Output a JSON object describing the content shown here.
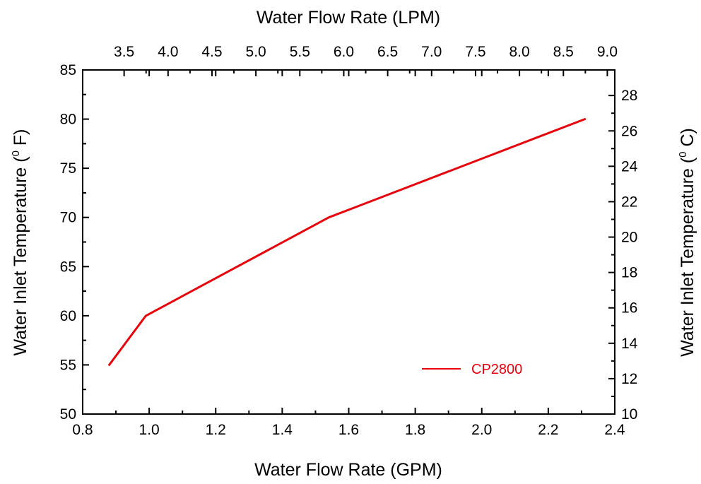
{
  "chart_data": {
    "type": "line",
    "title": "",
    "xlabel": "Water Flow Rate (GPM)",
    "ylabel_main": "Water Inlet Temperature (",
    "ylabel_sup": "0",
    "ylabel_unit": " F)",
    "x2label": "Water Flow Rate (LPM)",
    "y2label_main": "Water Inlet Temperature (",
    "y2label_sup": "0",
    "y2label_unit": " C)",
    "xlim": [
      0.8,
      2.4
    ],
    "ylim": [
      50,
      85
    ],
    "x2lim": [
      3.0283,
      9.085
    ],
    "y2lim": [
      10.0,
      29.444
    ],
    "x_ticks": [
      "0.8",
      "1.0",
      "1.2",
      "1.4",
      "1.6",
      "1.8",
      "2.0",
      "2.2",
      "2.4"
    ],
    "y_ticks": [
      "50",
      "55",
      "60",
      "65",
      "70",
      "75",
      "80",
      "85"
    ],
    "x2_ticks": [
      "3.5",
      "4.0",
      "4.5",
      "5.0",
      "5.5",
      "6.0",
      "6.5",
      "7.0",
      "7.5",
      "8.0",
      "8.5",
      "9.0"
    ],
    "y2_ticks": [
      "10",
      "12",
      "14",
      "16",
      "18",
      "20",
      "22",
      "24",
      "26",
      "28"
    ],
    "grid": false,
    "legend_position": "bottom-right",
    "series": [
      {
        "name": "CP2800",
        "color": "#e8000b",
        "x": [
          0.88,
          0.99,
          1.54,
          2.31
        ],
        "y": [
          55,
          60,
          70,
          80
        ]
      }
    ]
  }
}
